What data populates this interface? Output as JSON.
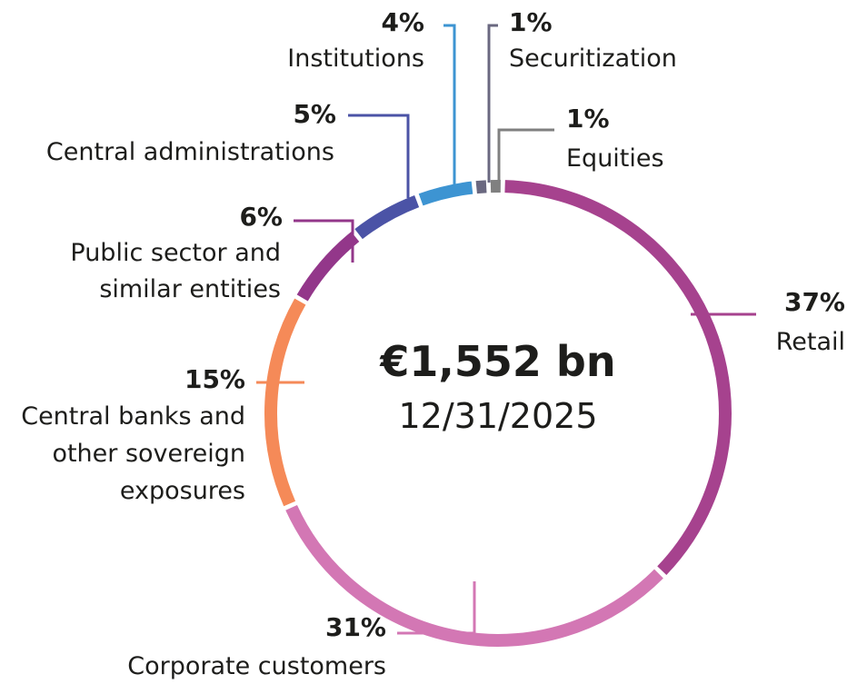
{
  "chart_data": {
    "type": "pie",
    "center_value": "€1,552 bn",
    "center_date": "12/31/2025",
    "slices": [
      {
        "label": "Retail",
        "percent_label": "37%",
        "value": 37,
        "color": "#a6428e"
      },
      {
        "label": "Corporate customers",
        "percent_label": "31%",
        "value": 31,
        "color": "#d377b4"
      },
      {
        "label": "Central banks and other sovereign exposures",
        "percent_label": "15%",
        "value": 15,
        "color": "#f58a58"
      },
      {
        "label": "Public sector and similar entities",
        "percent_label": "6%",
        "value": 6,
        "color": "#93378a"
      },
      {
        "label": "Central administrations",
        "percent_label": "5%",
        "value": 5,
        "color": "#4b53a6"
      },
      {
        "label": "Institutions",
        "percent_label": "4%",
        "value": 4,
        "color": "#3d94d2"
      },
      {
        "label": "Securitization",
        "percent_label": "1%",
        "value": 1,
        "color": "#6a6880"
      },
      {
        "label": "Equities",
        "percent_label": "1%",
        "value": 1,
        "color": "#808080"
      }
    ]
  }
}
